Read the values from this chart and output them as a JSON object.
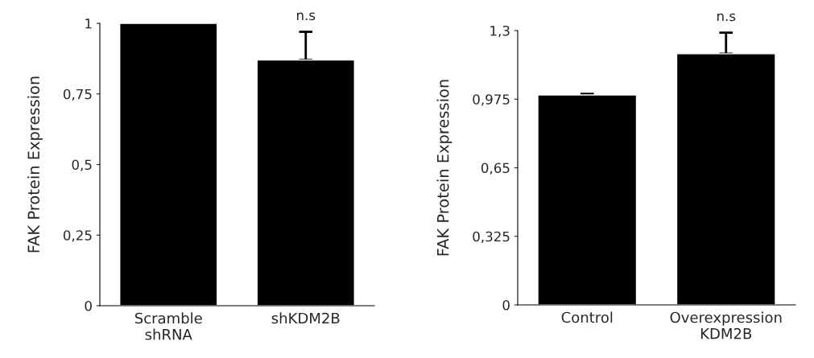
{
  "chart_data": [
    {
      "type": "bar",
      "ylabel": "FAK Protein Expression",
      "categories": [
        "Scramble\nshRNA",
        "shKDM2B"
      ],
      "values": [
        1.0,
        0.87
      ],
      "errors": [
        null,
        [
          0.87,
          0.97
        ]
      ],
      "colors": [
        "#000000",
        "#000000"
      ],
      "ylim": [
        0,
        1
      ],
      "yticks": [
        0,
        {
          "value": 0.25,
          "label": "0,25"
        },
        {
          "value": 0.5,
          "label": "0,5"
        },
        {
          "value": 0.75,
          "label": "0,75"
        },
        1
      ],
      "grid": false,
      "legend": false,
      "annotations": [
        {
          "text": "n.s",
          "x": "shKDM2B",
          "y": 0.97
        }
      ]
    },
    {
      "type": "bar",
      "ylabel": "FAK Protein Expression",
      "categories": [
        "Control",
        "Overexpression\nKDM2B"
      ],
      "values": [
        0.995,
        1.19
      ],
      "errors": [
        [
          0.995,
          1.0
        ],
        [
          1.19,
          1.29
        ]
      ],
      "colors": [
        "#000000",
        "#000000"
      ],
      "ylim": [
        0,
        1.3
      ],
      "yticks": [
        0,
        {
          "value": 0.325,
          "label": "0,325"
        },
        {
          "value": 0.65,
          "label": "0,65"
        },
        {
          "value": 0.975,
          "label": "0,975"
        },
        {
          "value": 1.3,
          "label": "1,3"
        }
      ],
      "grid": false,
      "legend": false,
      "annotations": [
        {
          "text": "n.s",
          "x": "Overexpression\nKDM2B",
          "y": 1.29
        }
      ]
    }
  ]
}
